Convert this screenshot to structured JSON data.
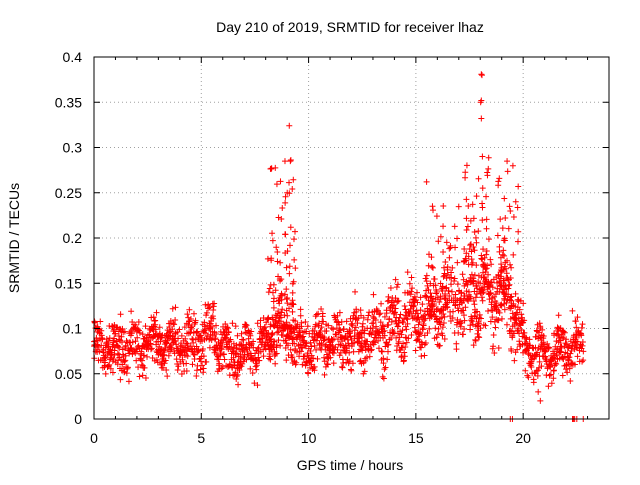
{
  "chart_data": {
    "type": "scatter",
    "title": "Day 210 of 2019, SRMTID for receiver lhaz",
    "xlabel": "GPS time / hours",
    "ylabel": "SRMTID / TECUs",
    "xlim": [
      0,
      24
    ],
    "ylim": [
      0,
      0.4
    ],
    "x_ticks": [
      0,
      5,
      10,
      15,
      20
    ],
    "x_tick_labels": [
      "0",
      "5",
      "10",
      "15",
      "20"
    ],
    "y_ticks": [
      0,
      0.05,
      0.1,
      0.15,
      0.2,
      0.25,
      0.3,
      0.35,
      0.4
    ],
    "y_tick_labels": [
      "0",
      "0.05",
      "0.1",
      "0.15",
      "0.2",
      "0.25",
      "0.3",
      "0.35",
      "0.4"
    ],
    "grid": true,
    "marker": "plus",
    "marker_color": "#ff0000",
    "series_name": "SRMTID",
    "trend": [
      [
        0.0,
        0.08
      ],
      [
        1.0,
        0.078
      ],
      [
        2.0,
        0.082
      ],
      [
        3.0,
        0.086
      ],
      [
        4.0,
        0.082
      ],
      [
        5.0,
        0.085
      ],
      [
        5.5,
        0.1
      ],
      [
        6.0,
        0.078
      ],
      [
        7.0,
        0.076
      ],
      [
        8.0,
        0.08
      ],
      [
        8.5,
        0.1
      ],
      [
        9.0,
        0.1
      ],
      [
        9.5,
        0.08
      ],
      [
        10.0,
        0.082
      ],
      [
        11.0,
        0.085
      ],
      [
        12.0,
        0.09
      ],
      [
        13.0,
        0.095
      ],
      [
        14.0,
        0.105
      ],
      [
        15.0,
        0.115
      ],
      [
        16.0,
        0.125
      ],
      [
        17.0,
        0.13
      ],
      [
        18.0,
        0.135
      ],
      [
        19.0,
        0.14
      ],
      [
        19.6,
        0.12
      ],
      [
        20.0,
        0.082
      ],
      [
        20.5,
        0.075
      ],
      [
        21.0,
        0.07
      ],
      [
        22.0,
        0.08
      ],
      [
        22.8,
        0.08
      ]
    ],
    "bursts": [
      {
        "x_range": [
          8.1,
          8.8
        ],
        "y_range": [
          0.1,
          0.28
        ],
        "count": 45
      },
      {
        "x_range": [
          8.9,
          9.4
        ],
        "y_range": [
          0.1,
          0.29
        ],
        "count": 45
      },
      {
        "x_range": [
          17.2,
          18.4
        ],
        "y_range": [
          0.14,
          0.29
        ],
        "count": 60
      },
      {
        "x_range": [
          18.7,
          19.8
        ],
        "y_range": [
          0.12,
          0.28
        ],
        "count": 55
      },
      {
        "x_range": [
          15.6,
          17.0
        ],
        "y_range": [
          0.12,
          0.24
        ],
        "count": 40
      }
    ],
    "outliers": [
      {
        "x": 9.1,
        "y": 0.324
      },
      {
        "x": 8.9,
        "y": 0.285
      },
      {
        "x": 9.15,
        "y": 0.285
      },
      {
        "x": 18.05,
        "y": 0.381
      },
      {
        "x": 18.08,
        "y": 0.38
      },
      {
        "x": 18.02,
        "y": 0.35
      },
      {
        "x": 18.05,
        "y": 0.352
      },
      {
        "x": 18.05,
        "y": 0.332
      },
      {
        "x": 18.1,
        "y": 0.29
      },
      {
        "x": 15.5,
        "y": 0.262
      },
      {
        "x": 19.25,
        "y": 0.285
      },
      {
        "x": 20.8,
        "y": 0.02
      },
      {
        "x": 20.7,
        "y": 0.03
      }
    ],
    "zero_points": [
      19.4,
      19.5,
      22.3,
      22.35,
      22.4,
      22.5,
      22.8
    ],
    "data_end_hour": 22.8
  }
}
